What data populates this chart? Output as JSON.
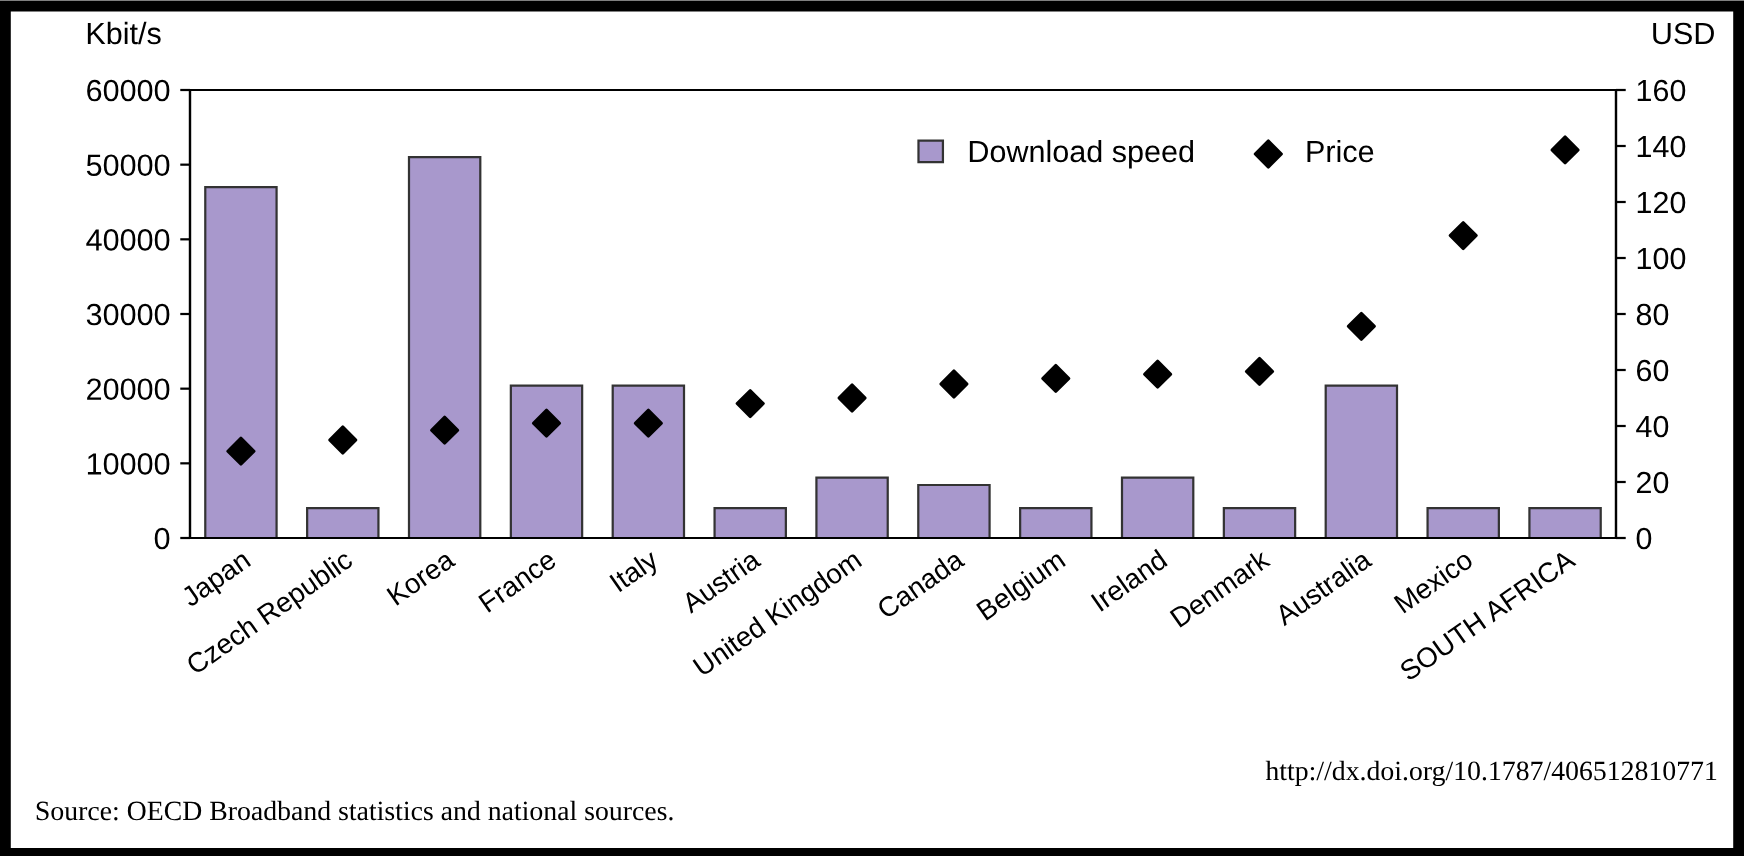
{
  "chart_data": {
    "type": "bar",
    "ylabel": "Kbit/s",
    "y2label": "USD",
    "categories": [
      "Japan",
      "Czech Republic",
      "Korea",
      "France",
      "Italy",
      "Austria",
      "United Kingdom",
      "Canada",
      "Belgium",
      "Ireland",
      "Denmark",
      "Australia",
      "Mexico",
      "SOUTH AFRICA"
    ],
    "series": [
      {
        "name": "Download speed",
        "color": "#a898cc",
        "values": [
          47000,
          4000,
          51000,
          20400,
          20400,
          4000,
          8100,
          7100,
          4000,
          8100,
          4000,
          20400,
          4000,
          4000
        ]
      },
      {
        "name": "Price",
        "type": "scatter",
        "axis": "y2",
        "color": "#000000",
        "marker": "diamond",
        "values": [
          31,
          35,
          38.5,
          41,
          41,
          48,
          50,
          55,
          57,
          58.5,
          59.5,
          75.6,
          108,
          138.6
        ]
      }
    ],
    "ylim": [
      0,
      60000
    ],
    "yticks": [
      0,
      10000,
      20000,
      30000,
      40000,
      50000,
      60000
    ],
    "y2lim": [
      0,
      160
    ],
    "y2ticks": [
      0,
      20,
      40,
      60,
      80,
      100,
      120,
      140,
      160
    ],
    "grid": false,
    "legend": "top right",
    "annotations": [
      "http://dx.doi.org/10.1787/406512810771",
      "Source: OECD Broadband statistics and national sources."
    ]
  }
}
